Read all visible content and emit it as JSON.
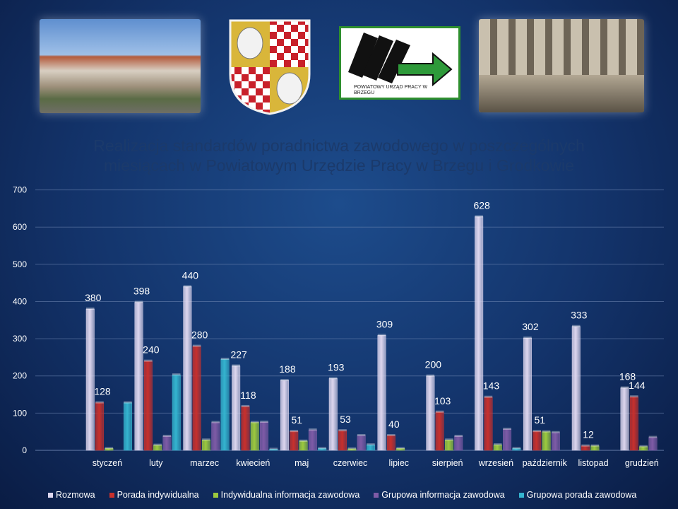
{
  "logo": {
    "text": "POWIATOWY URZĄD PRACY W BRZEGU"
  },
  "chart_data": {
    "type": "bar",
    "title": "Realizacja standardów poradnictwa zawodowego w poszczególnych miesiącach w Powiatowym Urzędzie Pracy w Brzegu  i Grodkowie",
    "title_lines": [
      "Realizacja standardów poradnictwa zawodowego w poszczególnych",
      "miesiącach w Powiatowym Urzędzie Pracy w Brzegu  i Grodkowie"
    ],
    "categories": [
      "styczeń",
      "luty",
      "marzec",
      "kwiecień",
      "maj",
      "czerwiec",
      "lipiec",
      "sierpień",
      "wrzesień",
      "październik",
      "listopad",
      "grudzień"
    ],
    "series": [
      {
        "name": "Rozmowa",
        "color": "#ddd6ee",
        "values": [
          380,
          398,
          440,
          227,
          188,
          193,
          309,
          200,
          628,
          302,
          333,
          168
        ]
      },
      {
        "name": "Porada indywidualna",
        "color": "#c8302c",
        "values": [
          128,
          240,
          280,
          118,
          51,
          53,
          40,
          103,
          143,
          51,
          12,
          144
        ]
      },
      {
        "name": "Indywidualna informacja zawodowa",
        "color": "#9cc93e",
        "values": [
          5,
          14,
          28,
          75,
          25,
          4,
          5,
          28,
          15,
          50,
          12,
          10
        ]
      },
      {
        "name": "Grupowa informacja zawodowa",
        "color": "#7e5ba6",
        "values": [
          0,
          38,
          75,
          76,
          55,
          40,
          0,
          38,
          57,
          48,
          0,
          35
        ]
      },
      {
        "name": "Grupowa porada zawodowa",
        "color": "#34b4cf",
        "values": [
          128,
          203,
          245,
          3,
          5,
          15,
          0,
          0,
          5,
          0,
          0,
          0
        ]
      }
    ],
    "data_labels": [
      {
        "category": 0,
        "series": 0,
        "text": "380"
      },
      {
        "category": 0,
        "series": 1,
        "text": "128"
      },
      {
        "category": 1,
        "series": 0,
        "text": "398"
      },
      {
        "category": 1,
        "series": 1,
        "text": "240"
      },
      {
        "category": 2,
        "series": 0,
        "text": "440"
      },
      {
        "category": 2,
        "series": 1,
        "text": "280"
      },
      {
        "category": 3,
        "series": 0,
        "text": "227"
      },
      {
        "category": 3,
        "series": 1,
        "text": "118"
      },
      {
        "category": 4,
        "series": 0,
        "text": "188"
      },
      {
        "category": 4,
        "series": 1,
        "text": "51"
      },
      {
        "category": 5,
        "series": 0,
        "text": "193"
      },
      {
        "category": 5,
        "series": 1,
        "text": "53"
      },
      {
        "category": 6,
        "series": 0,
        "text": "309"
      },
      {
        "category": 6,
        "series": 1,
        "text": "40"
      },
      {
        "category": 7,
        "series": 0,
        "text": "200"
      },
      {
        "category": 7,
        "series": 1,
        "text": "103"
      },
      {
        "category": 8,
        "series": 0,
        "text": "628"
      },
      {
        "category": 8,
        "series": 1,
        "text": "143"
      },
      {
        "category": 9,
        "series": 0,
        "text": "302"
      },
      {
        "category": 9,
        "series": 1,
        "text": "51"
      },
      {
        "category": 10,
        "series": 0,
        "text": "333"
      },
      {
        "category": 10,
        "series": 1,
        "text": "12"
      },
      {
        "category": 11,
        "series": 0,
        "text": "168"
      },
      {
        "category": 11,
        "series": 1,
        "text": "144"
      }
    ],
    "ylim": [
      0,
      700
    ],
    "yticks": [
      0,
      100,
      200,
      300,
      400,
      500,
      600,
      700
    ],
    "xlabel": "",
    "ylabel": "",
    "grid": true,
    "legend_position": "bottom"
  }
}
